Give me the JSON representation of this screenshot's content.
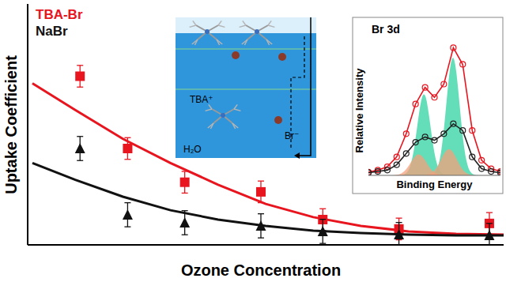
{
  "chart_data": [
    {
      "type": "scatter",
      "x_label": "Ozone Concentration",
      "y_label": "Uptake Coefficient",
      "xlim": [
        0,
        1
      ],
      "ylim": [
        0,
        1
      ],
      "tick_labels": false,
      "legend": "upper left",
      "series": [
        {
          "name": "TBA-Br",
          "color": "#e8141e",
          "marker": "square",
          "x": [
            0.11,
            0.21,
            0.33,
            0.49,
            0.62,
            0.78,
            0.97
          ],
          "values": [
            0.7,
            0.4,
            0.26,
            0.22,
            0.105,
            0.066,
            0.089
          ],
          "errors": [
            0.045,
            0.045,
            0.045,
            0.045,
            0.045,
            0.045,
            0.045
          ],
          "fit": {
            "x": [
              0.01,
              0.1,
              0.2,
              0.3,
              0.4,
              0.5,
              0.6,
              0.7,
              0.8,
              0.9,
              1.0
            ],
            "values": [
              0.67,
              0.56,
              0.44,
              0.34,
              0.25,
              0.17,
              0.115,
              0.079,
              0.056,
              0.046,
              0.043
            ]
          }
        },
        {
          "name": "NaBr",
          "color": "#111111",
          "marker": "triangle",
          "x": [
            0.11,
            0.21,
            0.33,
            0.49,
            0.62,
            0.78,
            0.97
          ],
          "values": [
            0.4,
            0.125,
            0.092,
            0.079,
            0.056,
            0.043,
            0.039
          ],
          "errors": [
            0.05,
            0.05,
            0.05,
            0.05,
            0.05,
            0.05,
            0.05
          ],
          "fit": {
            "x": [
              0.01,
              0.1,
              0.2,
              0.3,
              0.4,
              0.5,
              0.6,
              0.7,
              0.8,
              0.9,
              1.0
            ],
            "values": [
              0.34,
              0.27,
              0.2,
              0.144,
              0.105,
              0.079,
              0.059,
              0.049,
              0.043,
              0.039,
              0.039
            ]
          }
        }
      ],
      "annotations": [
        "TBA⁺",
        "Br⁻",
        "H₂O"
      ]
    },
    {
      "type": "line",
      "title": "Br 3d",
      "x_label": "Binding Energy",
      "y_label": "Relative Intensity",
      "xlim": [
        0,
        1
      ],
      "ylim": [
        0,
        1.05
      ],
      "tick_labels": false,
      "x": [
        0,
        0.071,
        0.143,
        0.214,
        0.286,
        0.357,
        0.429,
        0.5,
        0.571,
        0.643,
        0.714,
        0.786,
        0.857,
        0.929,
        1
      ],
      "series": [
        {
          "color": "#e8141e",
          "marker": "circle",
          "values": [
            0.025,
            0.04,
            0.066,
            0.141,
            0.318,
            0.545,
            0.672,
            0.596,
            0.697,
            0.975,
            0.848,
            0.343,
            0.116,
            0.051,
            0.03
          ]
        },
        {
          "color": "#222222",
          "marker": "circle",
          "values": [
            0.02,
            0.03,
            0.04,
            0.081,
            0.167,
            0.253,
            0.293,
            0.268,
            0.318,
            0.394,
            0.343,
            0.141,
            0.051,
            0.03,
            0.02
          ]
        }
      ],
      "components": [
        {
          "center": 0.42,
          "height": 0.62,
          "width": 0.05,
          "color": "#2fd3a0"
        },
        {
          "center": 0.64,
          "height": 0.9,
          "width": 0.05,
          "color": "#2fd3a0"
        },
        {
          "center": 0.38,
          "height": 0.16,
          "width": 0.06,
          "color": "#f4a07c"
        },
        {
          "center": 0.61,
          "height": 0.2,
          "width": 0.06,
          "color": "#f4a07c"
        }
      ]
    }
  ]
}
